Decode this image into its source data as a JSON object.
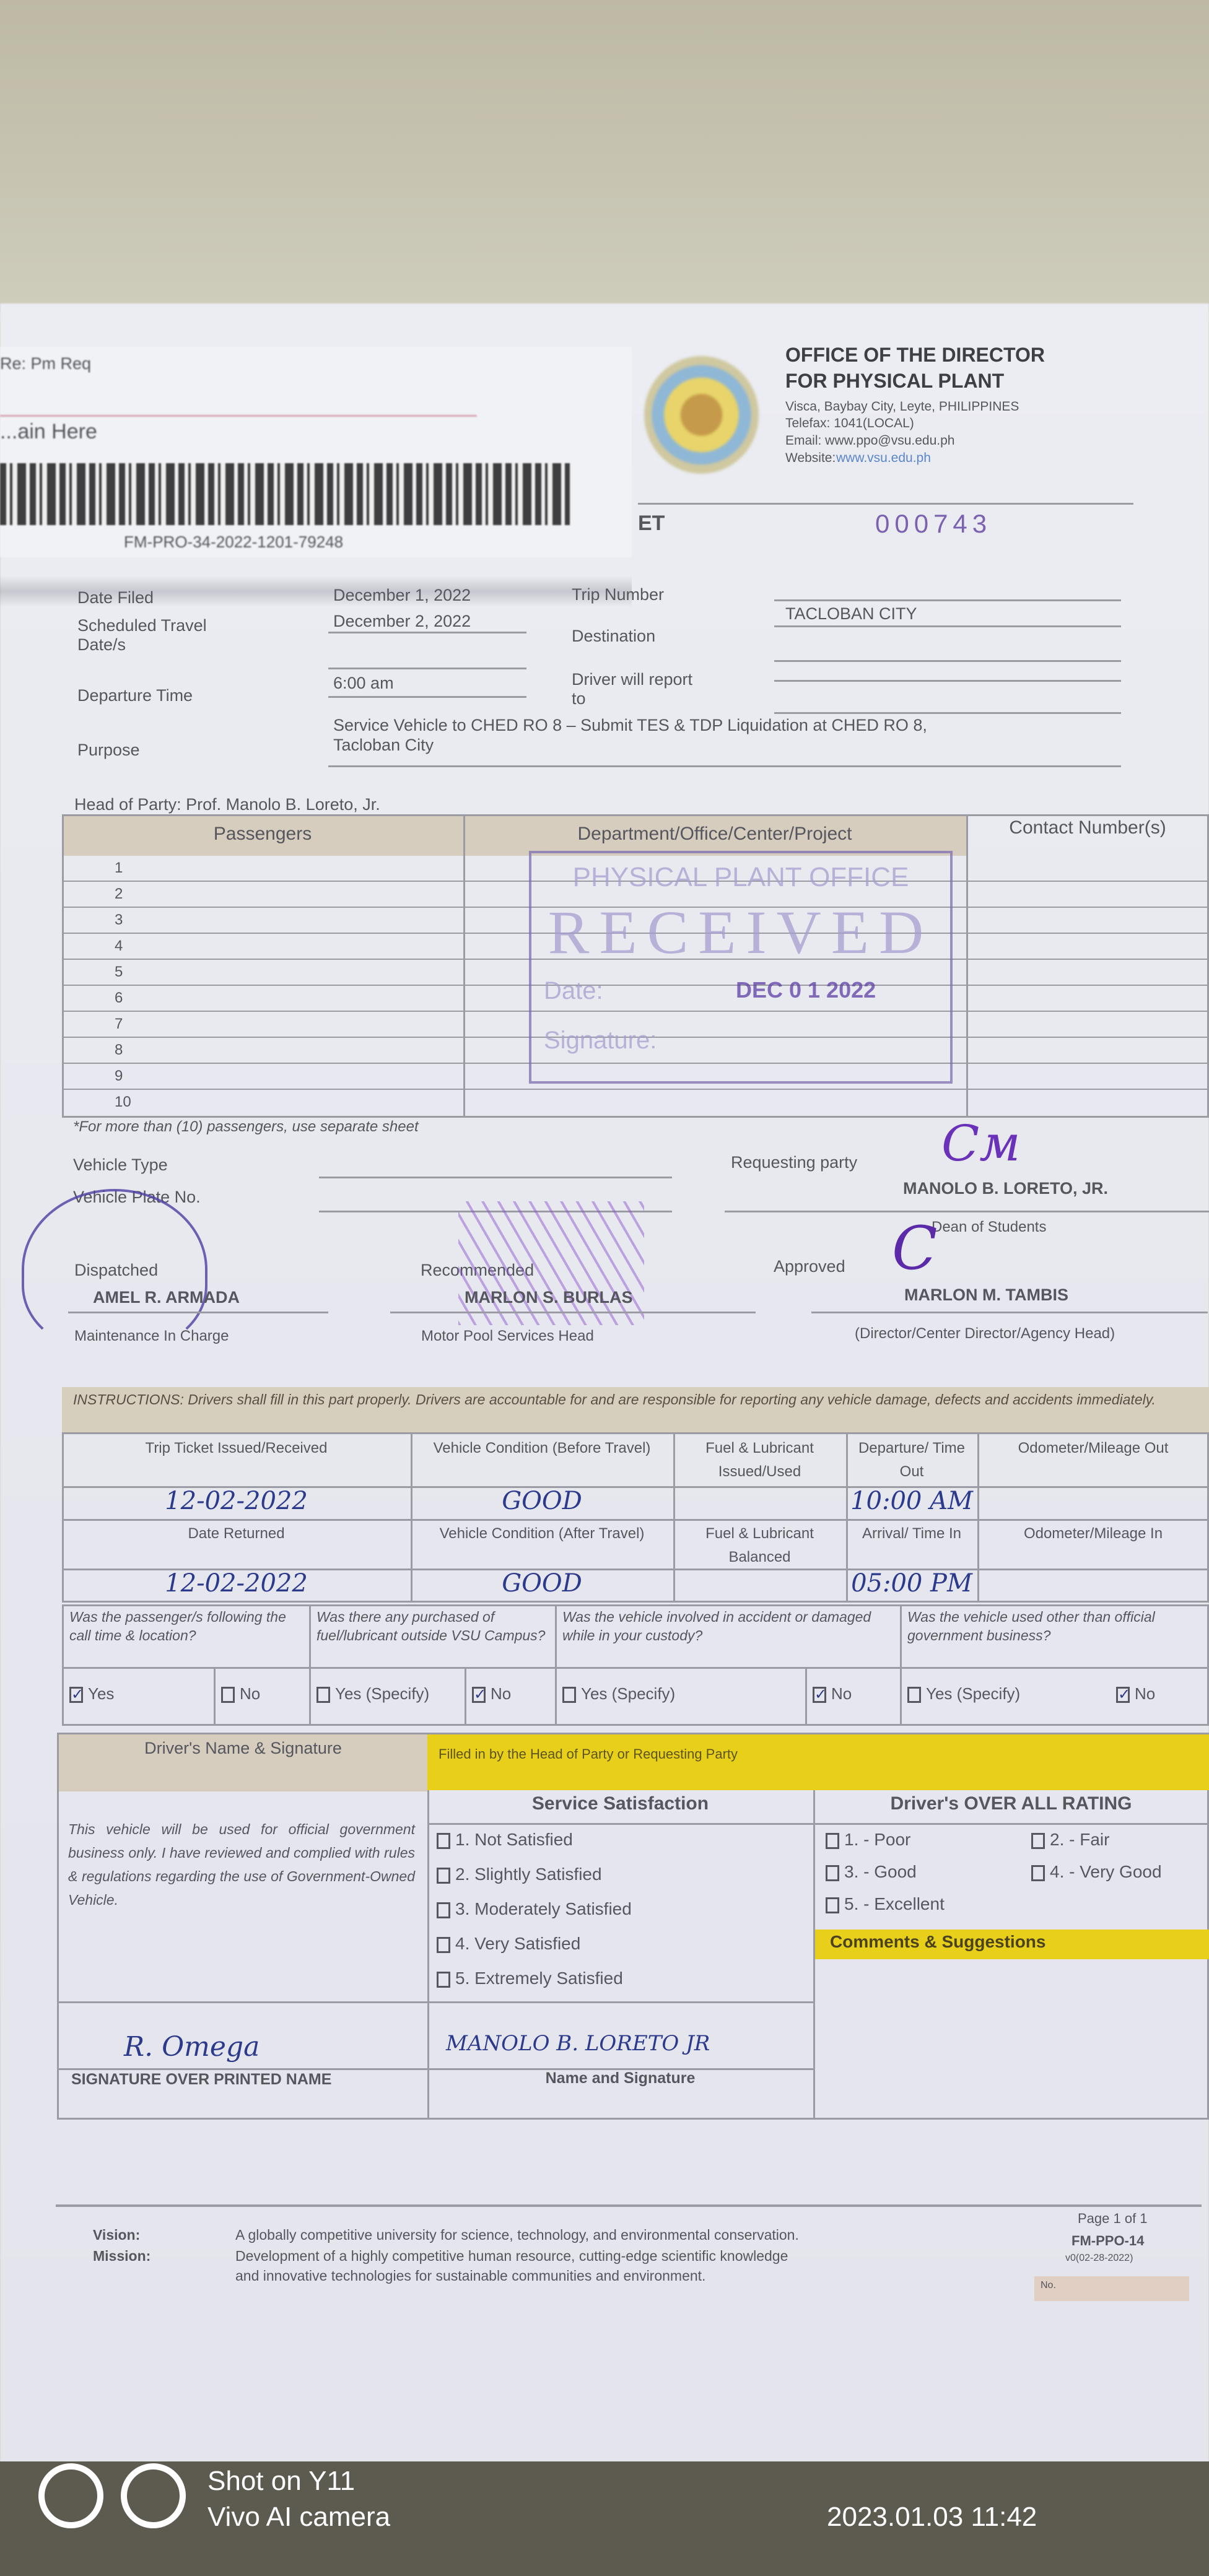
{
  "sticker": {
    "line1": "Re: Pm Req",
    "line2": "...ain Here",
    "code": "FM-PRO-34-2022-1201-79248"
  },
  "header": {
    "title1": "OFFICE OF THE DIRECTOR",
    "title2": "FOR PHYSICAL PLANT",
    "address": "Visca, Baybay City, Leyte, PHILIPPINES",
    "tel": "Telefax: 1041(LOCAL)",
    "email": "Email: www.ppo@vsu.edu.ph",
    "website_label": "Website:",
    "website": "www.vsu.edu.ph",
    "form_title_fragment": "ET",
    "ticket_number": "000743"
  },
  "fields": {
    "date_filed_label": "Date Filed",
    "date_filed": "December 1, 2022",
    "sched_label": "Scheduled Travel Date/s",
    "sched": "December 2, 2022",
    "trip_number_label": "Trip Number",
    "destination_label": "Destination",
    "destination": "TACLOBAN CITY",
    "departure_label": "Departure Time",
    "departure": "6:00 am",
    "report_label": "Driver will report to",
    "purpose_label": "Purpose",
    "purpose_1": "Service Vehicle to CHED RO 8 – Submit TES & TDP Liquidation at CHED RO 8,",
    "purpose_2": "Tacloban City",
    "head_of_party": "Head of Party: Prof. Manolo B. Loreto, Jr."
  },
  "passengers": {
    "headers": [
      "Passengers",
      "Department/Office/Center/Project",
      "Contact Number(s)"
    ],
    "rows": [
      "1",
      "2",
      "3",
      "4",
      "5",
      "6",
      "7",
      "8",
      "9",
      "10"
    ],
    "note": "*For more than (10) passengers, use separate sheet"
  },
  "stamp": {
    "office": "PHYSICAL PLANT OFFICE",
    "received": "RECEIVED",
    "date_label": "Date:",
    "date": "DEC 0 1 2022",
    "signature_label": "Signature:"
  },
  "vehicle": {
    "type_label": "Vehicle Type",
    "plate_label": "Vehicle Plate No."
  },
  "signatories": {
    "requesting_label": "Requesting party",
    "requesting_name": "MANOLO B. LORETO, JR.",
    "requesting_title": "Dean of Students",
    "dispatched_label": "Dispatched",
    "dispatched_name": "AMEL R. ARMADA",
    "dispatched_title": "Maintenance In Charge",
    "recommended_label": "Recommended",
    "recommended_name": "MARLON S. BURLAS",
    "recommended_title": "Motor Pool Services Head",
    "approved_label": "Approved",
    "approved_name": "MARLON M. TAMBIS",
    "approved_title": "(Director/Center Director/Agency Head)"
  },
  "instructions": "INSTRUCTIONS: Drivers shall fill in this part properly. Drivers are accountable for and are responsible for reporting any vehicle damage, defects and accidents immediately.",
  "trip": {
    "h1": [
      "Trip Ticket Issued/Received",
      "Vehicle Condition (Before Travel)",
      "Fuel & Lubricant Issued/Used",
      "Departure/ Time Out",
      "Odometer/Mileage Out"
    ],
    "v1": [
      "12-02-2022",
      "GOOD",
      "",
      "10:00 AM",
      ""
    ],
    "h2": [
      "Date Returned",
      "Vehicle Condition (After Travel)",
      "Fuel & Lubricant Balanced",
      "Arrival/ Time In",
      "Odometer/Mileage In"
    ],
    "v2": [
      "12-02-2022",
      "GOOD",
      "",
      "05:00 PM",
      ""
    ]
  },
  "questions": {
    "q": [
      "Was the passenger/s following the call time & location?",
      "Was there any purchased of fuel/lubricant outside VSU Campus?",
      "Was the vehicle involved in accident or damaged while in your custody?",
      "Was the vehicle used other than official government business?"
    ],
    "a": [
      "Yes",
      "No",
      "Yes (Specify)",
      "No",
      "Yes (Specify)",
      "No",
      "Yes (Specify)",
      "No"
    ],
    "checked": [
      true,
      false,
      false,
      true,
      false,
      true,
      false,
      true
    ]
  },
  "driver": {
    "header": "Driver's Name & Signature",
    "yellow": "Filled in by the Head of Party or Requesting Party",
    "statement": "This vehicle will be used for official government business only. I have reviewed and complied with rules & regulations regarding the use of Government-Owned Vehicle.",
    "signature": "R. Omega",
    "sig_label": "SIGNATURE OVER PRINTED NAME"
  },
  "satisfaction": {
    "title": "Service Satisfaction",
    "items": [
      "1.  Not Satisfied",
      "2.  Slightly Satisfied",
      "3.  Moderately Satisfied",
      "4.  Very Satisfied",
      "5.  Extremely Satisfied"
    ],
    "signature": "MANOLO B. LORETO JR",
    "sig_label": "Name and Signature"
  },
  "rating": {
    "title": "Driver's OVER ALL RATING",
    "items": [
      "1. - Poor",
      "2. - Fair",
      "3. - Good",
      "4. - Very Good",
      "5. - Excellent"
    ],
    "comments": "Comments & Suggestions"
  },
  "footer": {
    "vision_label": "Vision:",
    "vision": "A globally competitive university for science, technology, and environmental conservation.",
    "mission_label": "Mission:",
    "mission_1": "Development of a highly competitive human resource, cutting-edge scientific knowledge",
    "mission_2": "and innovative technologies for sustainable communities and environment.",
    "page": "Page 1 of 1",
    "form_code": "FM-PPO-14",
    "revision": "v0(02-28-2022)",
    "no": "No."
  },
  "watermark": {
    "line1": "Shot on Y11",
    "line2": "Vivo AI camera",
    "datetime": "2023.01.03 11:42"
  }
}
